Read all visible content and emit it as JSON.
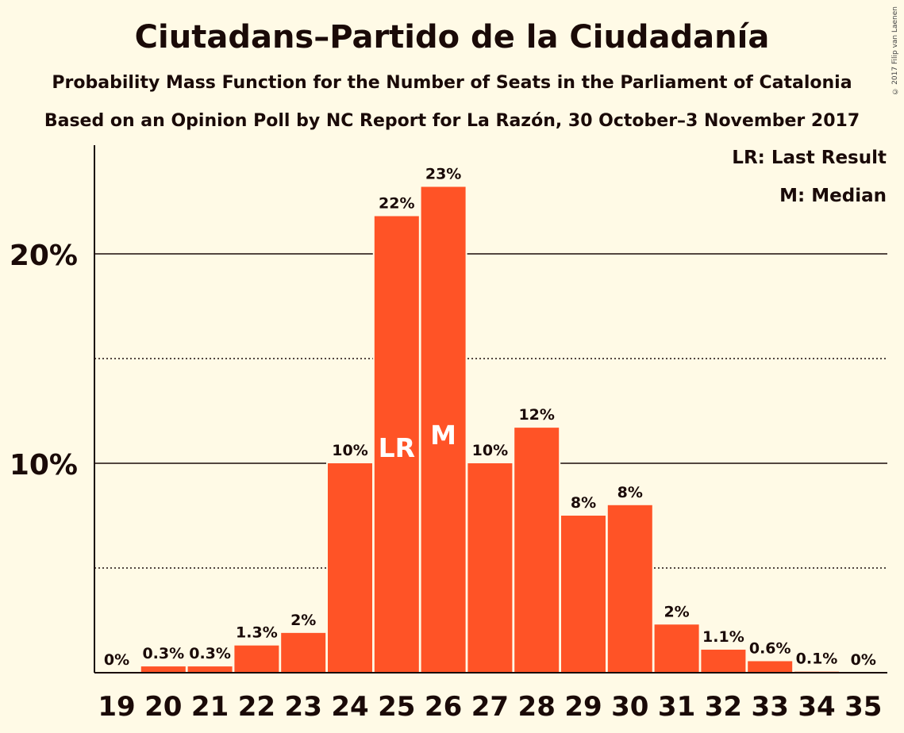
{
  "title": "Ciutadans–Partido de la Ciudadanía",
  "subtitle1": "Probability Mass Function for the Number of Seats in the Parliament of Catalonia",
  "subtitle2": "Based on an Opinion Poll by NC Report for La Razón, 30 October–3 November 2017",
  "copyright": "© 2017 Filip van Laenen",
  "legend": {
    "last_result": "LR: Last Result",
    "median": "M: Median"
  },
  "colors": {
    "bar": "#ff5326",
    "background": "#fffae6",
    "text": "#1a0a08"
  },
  "chart_data": {
    "type": "bar",
    "categories": [
      "19",
      "20",
      "21",
      "22",
      "23",
      "24",
      "25",
      "26",
      "27",
      "28",
      "29",
      "30",
      "31",
      "32",
      "33",
      "34",
      "35"
    ],
    "values": [
      0,
      0.3,
      0.3,
      1.3,
      1.9,
      10,
      21.8,
      23.2,
      10,
      11.7,
      7.5,
      8,
      2.3,
      1.1,
      0.55,
      0.05,
      0
    ],
    "data_labels": [
      "0%",
      "0.3%",
      "0.3%",
      "1.3%",
      "2%",
      "10%",
      "22%",
      "23%",
      "10%",
      "12%",
      "8%",
      "8%",
      "2%",
      "1.1%",
      "0.6%",
      "0.1%",
      "0%"
    ],
    "bar_markers": {
      "25": "LR",
      "26": "M"
    },
    "yticks": [
      10,
      20
    ],
    "ytick_labels": [
      "10%",
      "20%"
    ],
    "minor_gridlines": [
      5,
      15
    ],
    "ylim": [
      0,
      25
    ],
    "grid": true,
    "legend_position": "top-right"
  }
}
